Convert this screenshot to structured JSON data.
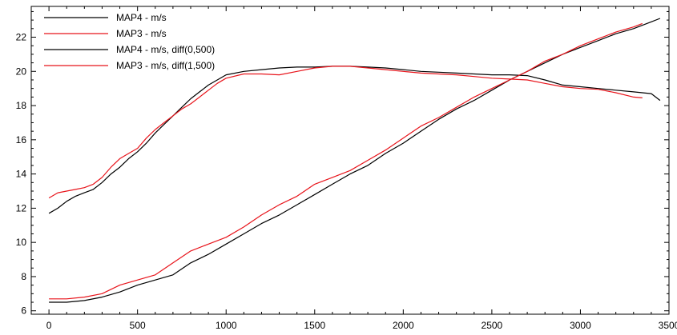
{
  "chart_data": {
    "type": "line",
    "title": "",
    "xlabel": "",
    "ylabel": "",
    "xlim": [
      -100,
      3500
    ],
    "ylim": [
      5.8,
      23.8
    ],
    "x_ticks": [
      0,
      500,
      1000,
      1500,
      2000,
      2500,
      3000,
      3500
    ],
    "y_ticks": [
      6,
      8,
      10,
      12,
      14,
      16,
      18,
      20,
      22
    ],
    "x_tick_labels": [
      "0",
      "500",
      "1000",
      "1500",
      "2000",
      "2500",
      "3000",
      "3500"
    ],
    "y_tick_labels": [
      "6",
      "8",
      "10",
      "12",
      "14",
      "16",
      "18",
      "20",
      "22"
    ],
    "grid": false,
    "legend_position": "top-left",
    "series": [
      {
        "name": "MAP4 - m/s",
        "color": "#000000",
        "x": [
          0,
          50,
          100,
          150,
          200,
          250,
          300,
          350,
          400,
          450,
          500,
          550,
          600,
          650,
          700,
          750,
          800,
          850,
          900,
          950,
          1000,
          1100,
          1200,
          1300,
          1400,
          1500,
          1600,
          1700,
          1800,
          1900,
          2000,
          2100,
          2200,
          2300,
          2400,
          2500,
          2600,
          2700,
          2800,
          2900,
          3000,
          3100,
          3200,
          3300,
          3400,
          3450
        ],
        "y": [
          11.7,
          12.0,
          12.4,
          12.7,
          12.9,
          13.1,
          13.5,
          14.0,
          14.4,
          14.9,
          15.3,
          15.8,
          16.4,
          16.9,
          17.4,
          17.9,
          18.4,
          18.8,
          19.2,
          19.5,
          19.8,
          20.0,
          20.1,
          20.2,
          20.25,
          20.25,
          20.3,
          20.3,
          20.25,
          20.2,
          20.1,
          20.0,
          19.95,
          19.9,
          19.85,
          19.8,
          19.8,
          19.75,
          19.5,
          19.2,
          19.1,
          19.0,
          18.9,
          18.8,
          18.7,
          18.3
        ]
      },
      {
        "name": "MAP3 - m/s",
        "color": "#e8141b",
        "x": [
          0,
          50,
          100,
          150,
          200,
          250,
          300,
          350,
          400,
          450,
          500,
          550,
          600,
          650,
          700,
          750,
          800,
          850,
          900,
          950,
          1000,
          1100,
          1200,
          1300,
          1400,
          1500,
          1600,
          1700,
          1800,
          1900,
          2000,
          2100,
          2200,
          2300,
          2400,
          2500,
          2600,
          2700,
          2800,
          2900,
          3000,
          3100,
          3200,
          3300,
          3350
        ],
        "y": [
          12.6,
          12.9,
          13.0,
          13.1,
          13.2,
          13.4,
          13.8,
          14.4,
          14.9,
          15.2,
          15.5,
          16.1,
          16.6,
          17.0,
          17.4,
          17.8,
          18.1,
          18.5,
          18.9,
          19.3,
          19.6,
          19.85,
          19.85,
          19.8,
          20.0,
          20.2,
          20.3,
          20.3,
          20.2,
          20.1,
          20.0,
          19.9,
          19.85,
          19.8,
          19.7,
          19.6,
          19.55,
          19.5,
          19.3,
          19.1,
          19.0,
          18.95,
          18.75,
          18.5,
          18.45
        ]
      },
      {
        "name": "MAP4 - m/s, diff(0,500)",
        "color": "#000000",
        "x": [
          0,
          100,
          200,
          300,
          400,
          500,
          600,
          700,
          800,
          900,
          1000,
          1100,
          1200,
          1300,
          1400,
          1500,
          1600,
          1700,
          1800,
          1900,
          2000,
          2100,
          2200,
          2300,
          2400,
          2500,
          2600,
          2700,
          2800,
          2900,
          3000,
          3100,
          3200,
          3300,
          3400,
          3450
        ],
        "y": [
          6.5,
          6.5,
          6.6,
          6.8,
          7.1,
          7.5,
          7.8,
          8.1,
          8.8,
          9.3,
          9.9,
          10.5,
          11.1,
          11.6,
          12.2,
          12.8,
          13.4,
          14.0,
          14.5,
          15.2,
          15.8,
          16.5,
          17.2,
          17.8,
          18.3,
          18.9,
          19.5,
          20.0,
          20.5,
          21.0,
          21.4,
          21.8,
          22.2,
          22.5,
          22.9,
          23.1
        ]
      },
      {
        "name": "MAP3 - m/s, diff(1,500)",
        "color": "#e8141b",
        "x": [
          0,
          100,
          200,
          300,
          400,
          500,
          600,
          700,
          800,
          900,
          1000,
          1100,
          1200,
          1300,
          1400,
          1500,
          1600,
          1700,
          1800,
          1900,
          2000,
          2100,
          2200,
          2300,
          2400,
          2500,
          2600,
          2700,
          2800,
          2900,
          3000,
          3100,
          3200,
          3300,
          3350
        ],
        "y": [
          6.7,
          6.7,
          6.8,
          7.0,
          7.5,
          7.8,
          8.1,
          8.8,
          9.5,
          9.9,
          10.3,
          10.9,
          11.6,
          12.2,
          12.7,
          13.4,
          13.8,
          14.2,
          14.8,
          15.4,
          16.1,
          16.8,
          17.3,
          17.9,
          18.5,
          19.0,
          19.5,
          20.0,
          20.6,
          21.0,
          21.5,
          21.9,
          22.3,
          22.6,
          22.8
        ]
      }
    ]
  }
}
